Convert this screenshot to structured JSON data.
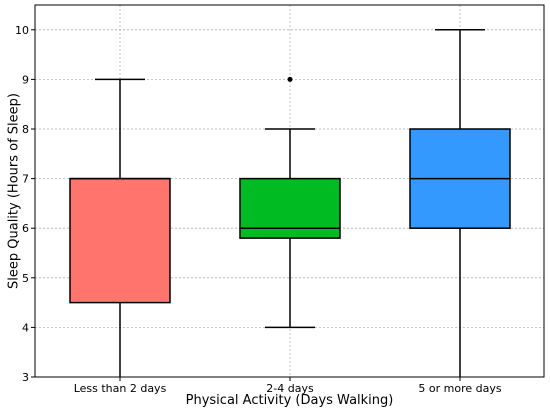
{
  "chart_data": {
    "type": "box",
    "xlabel": "Physical Activity (Days Walking)",
    "ylabel": "Sleep Quality (Hours of Sleep)",
    "ylim": [
      3,
      10.5
    ],
    "yticks": [
      3,
      4,
      5,
      6,
      7,
      8,
      9,
      10
    ],
    "grid": true,
    "categories": [
      "Less than 2 days",
      "2-4 days",
      "5 or more days"
    ],
    "boxes": [
      {
        "category": "Less than 2 days",
        "whisker_low": 3,
        "q1": 4.5,
        "median": 7,
        "q3": 7,
        "whisker_high": 9,
        "outliers": [],
        "color": "#ff746c"
      },
      {
        "category": "2-4 days",
        "whisker_low": 4,
        "q1": 5.8,
        "median": 6,
        "q3": 7,
        "whisker_high": 8,
        "outliers": [
          9
        ],
        "color": "#00bb22"
      },
      {
        "category": "5 or more days",
        "whisker_low": 3,
        "q1": 6,
        "median": 7,
        "q3": 8,
        "whisker_high": 10,
        "outliers": [],
        "color": "#3399ff"
      }
    ]
  }
}
